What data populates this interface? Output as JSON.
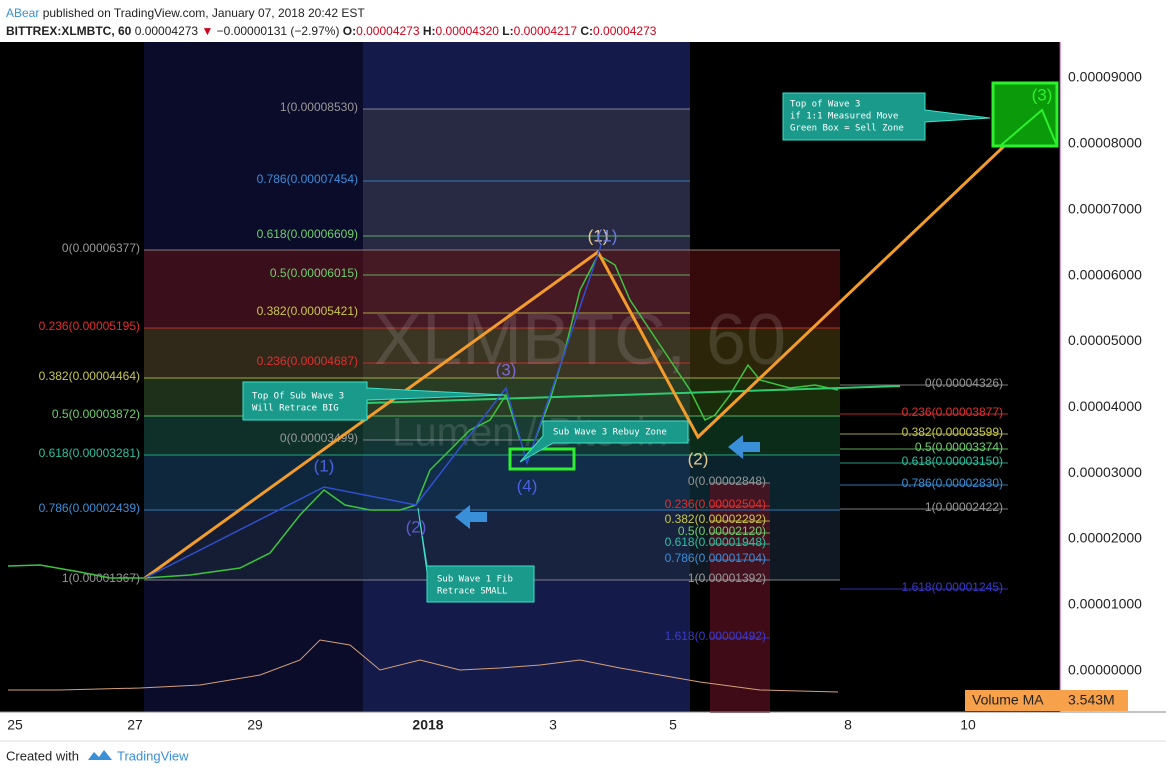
{
  "header": {
    "author": "ABear",
    "published": "published on TradingView.com, January 07, 2018 20:42 EST",
    "symbol": "BITTREX:XLMBTC, 60",
    "last": "0.00004273",
    "change": "−0.00000131 (−2.97%)",
    "open_label": "O:",
    "open": "0.00004273",
    "high_label": "H:",
    "high": "0.00004320",
    "low_label": "L:",
    "low": "0.00004217",
    "close_label": "C:",
    "close": "0.00004273"
  },
  "watermark": {
    "symbol": "XLMBTC, 60",
    "name": "Lumen / Bitcoin"
  },
  "price_axis": [
    "0.00009000",
    "0.00008000",
    "0.00007000",
    "0.00006000",
    "0.00005000",
    "0.00004000",
    "0.00003000",
    "0.00002000",
    "0.00001000",
    "0.00000000"
  ],
  "time_axis": [
    "25",
    "27",
    "29",
    "2018",
    "3",
    "5",
    "8",
    "10"
  ],
  "volume": {
    "label": "Volume MA",
    "value": "3.543M"
  },
  "fib_sets": [
    {
      "labels": [
        "1(0.00008530)",
        "0.786(0.00007454)",
        "0.618(0.00006609)",
        "0.5(0.00006015)",
        "0.382(0.00005421)",
        "0.236(0.00004687)",
        "0(0.00003499)"
      ]
    },
    {
      "labels": [
        "0(0.00006377)",
        "0.236(0.00005195)",
        "0.382(0.00004464)",
        "0.5(0.00003872)",
        "0.618(0.00003281)",
        "0.786(0.00002439)",
        "1(0.00001367)"
      ]
    },
    {
      "labels": [
        "0(0.00004326)",
        "0.236(0.00003877)",
        "0.382(0.00003599)",
        "0.5(0.00003374)",
        "0.618(0.00003150)",
        "0.786(0.00002830)",
        "1(0.00002422)",
        "1.618(0.00001245)"
      ]
    },
    {
      "labels": [
        "0(0.00002848)",
        "0.236(0.00002504)",
        "0.382(0.00002292)",
        "0.5(0.00002120)",
        "0.618(0.00001948)",
        "0.786(0.00001704)",
        "1(0.00001392)",
        "1.618(0.00000492)"
      ]
    }
  ],
  "waves": [
    "(1)",
    "(2)",
    "(3)",
    "(4)",
    "(1)",
    "(1)",
    "(2)",
    "(3)"
  ],
  "annotations": [
    {
      "lines": [
        "Top of Wave 3",
        "if 1:1 Measured Move",
        "Green Box = Sell Zone"
      ]
    },
    {
      "lines": [
        "Top Of Sub Wave 3",
        "Will Retrace BIG"
      ]
    },
    {
      "lines": [
        "Sub Wave 3 Rebuy Zone"
      ]
    },
    {
      "lines": [
        "Sub Wave 1 Fib",
        "Retrace SMALL"
      ]
    }
  ],
  "footer": {
    "created": "Created with",
    "brand": "TradingView"
  }
}
